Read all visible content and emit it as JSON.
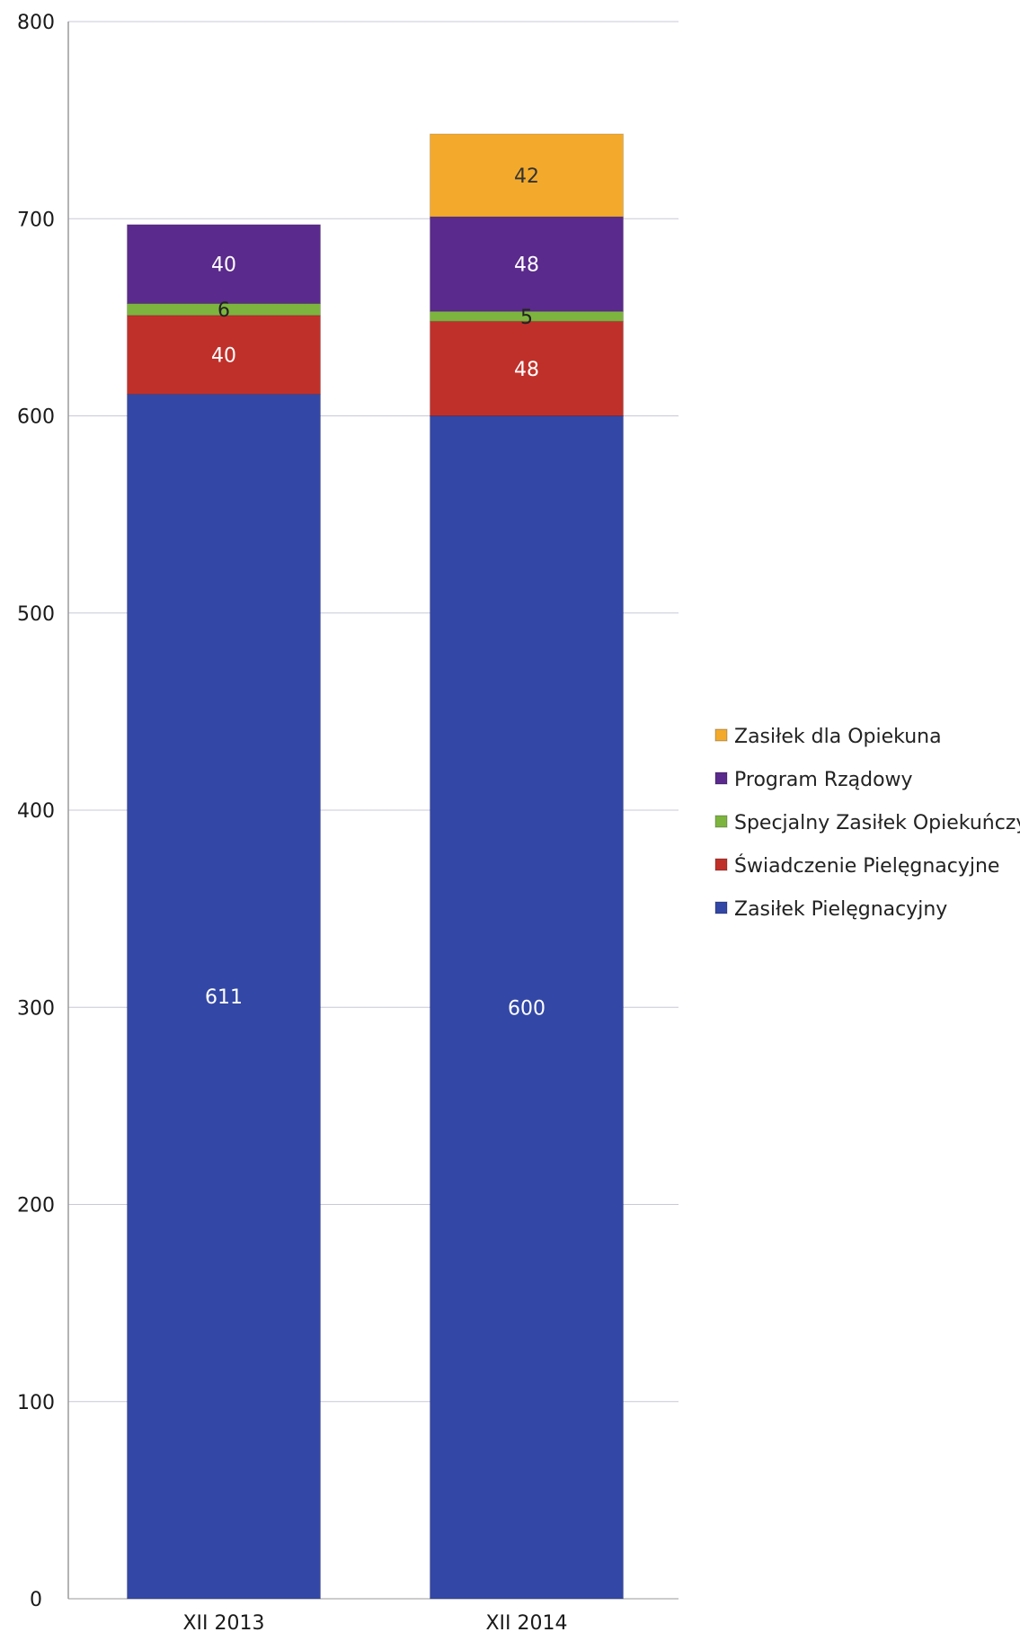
{
  "chart_data": {
    "type": "bar",
    "stacked": true,
    "categories": [
      "XII 2013",
      "XII 2014"
    ],
    "series": [
      {
        "name": "Zasiłek Pielęgnacyjny",
        "values": [
          611,
          600
        ],
        "color": "#3347a6"
      },
      {
        "name": "Świadczenie Pielęgnacyjne",
        "values": [
          40,
          48
        ],
        "color": "#c0302a"
      },
      {
        "name": "Specjalny Zasiłek Opiekuńczy",
        "values": [
          6,
          5
        ],
        "color": "#7db43f"
      },
      {
        "name": "Program Rządowy",
        "values": [
          40,
          48
        ],
        "color": "#5a2a8c"
      },
      {
        "name": "Zasiłek dla Opiekuna",
        "values": [
          null,
          42
        ],
        "color": "#f3aa2c"
      }
    ],
    "data_labels": [
      [
        "611",
        "40",
        "6",
        "40",
        ""
      ],
      [
        "600",
        "48",
        "5",
        "48",
        "42"
      ]
    ],
    "yticks": [
      "0",
      "100",
      "200",
      "300",
      "400",
      "500",
      "600",
      "700",
      "800"
    ],
    "ylim": [
      0,
      800
    ],
    "grid": true,
    "legend_position": "right",
    "legend_order": [
      "Zasiłek dla Opiekuna",
      "Program Rządowy",
      "Specjalny Zasiłek Opiekuńczy",
      "Świadczenie Pielęgnacyjne",
      "Zasiłek Pielęgnacyjny"
    ]
  }
}
